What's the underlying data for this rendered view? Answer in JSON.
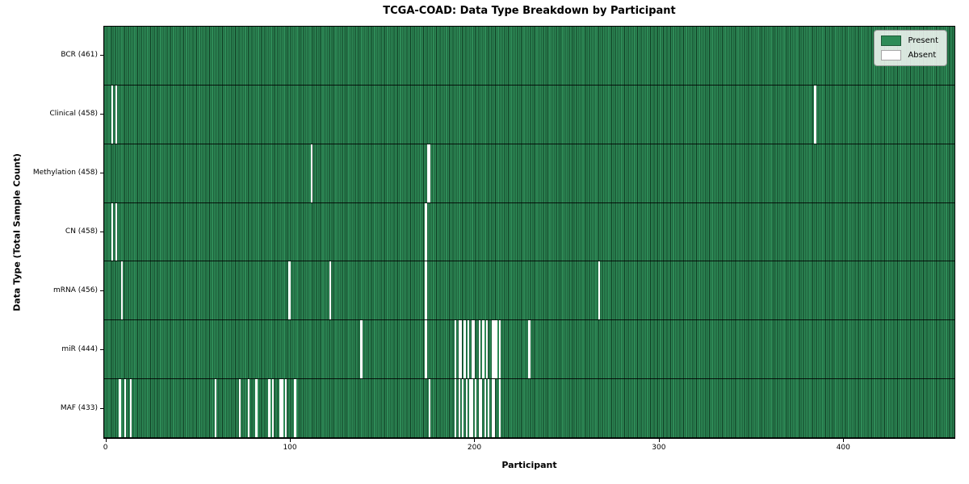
{
  "title": "TCGA-COAD: Data Type Breakdown by Participant",
  "colors": {
    "present": "#2e8b57",
    "absent": "#ffffff",
    "bar_edge": "#0e3a21",
    "plot_border": "#000000"
  },
  "chart_data": {
    "type": "heatmap",
    "title": "TCGA-COAD: Data Type Breakdown by Participant",
    "xlabel": "Participant",
    "ylabel": "Data Type (Total Sample Count)",
    "xlim": [
      0,
      461
    ],
    "n_participants": 461,
    "x_ticks": [
      0,
      100,
      200,
      300,
      400
    ],
    "grid": false,
    "legend_position": "upper right",
    "legend": [
      {
        "label": "Present",
        "color": "#2e8b57"
      },
      {
        "label": "Absent",
        "color": "#ffffff"
      }
    ],
    "rows": [
      {
        "label": "BCR (461)",
        "present_count": 461,
        "absent_participants": []
      },
      {
        "label": "Clinical (458)",
        "present_count": 458,
        "absent_participants": [
          4,
          6,
          385
        ]
      },
      {
        "label": "Methylation (458)",
        "present_count": 458,
        "absent_participants": [
          112,
          175,
          176
        ]
      },
      {
        "label": "CN (458)",
        "present_count": 458,
        "absent_participants": [
          4,
          6,
          174
        ]
      },
      {
        "label": "mRNA (456)",
        "present_count": 456,
        "absent_participants": [
          9,
          100,
          122,
          174,
          268
        ]
      },
      {
        "label": "miR (444)",
        "present_count": 444,
        "absent_participants": [
          139,
          174,
          190,
          192,
          193,
          195,
          197,
          199,
          200,
          203,
          205,
          207,
          210,
          211,
          212,
          214,
          230
        ]
      },
      {
        "label": "MAF (433)",
        "present_count": 433,
        "absent_participants": [
          8,
          11,
          14,
          60,
          73,
          78,
          82,
          89,
          91,
          95,
          96,
          98,
          103,
          176,
          190,
          192,
          194,
          196,
          198,
          199,
          201,
          203,
          204,
          206,
          208,
          210,
          211,
          214
        ]
      }
    ]
  }
}
